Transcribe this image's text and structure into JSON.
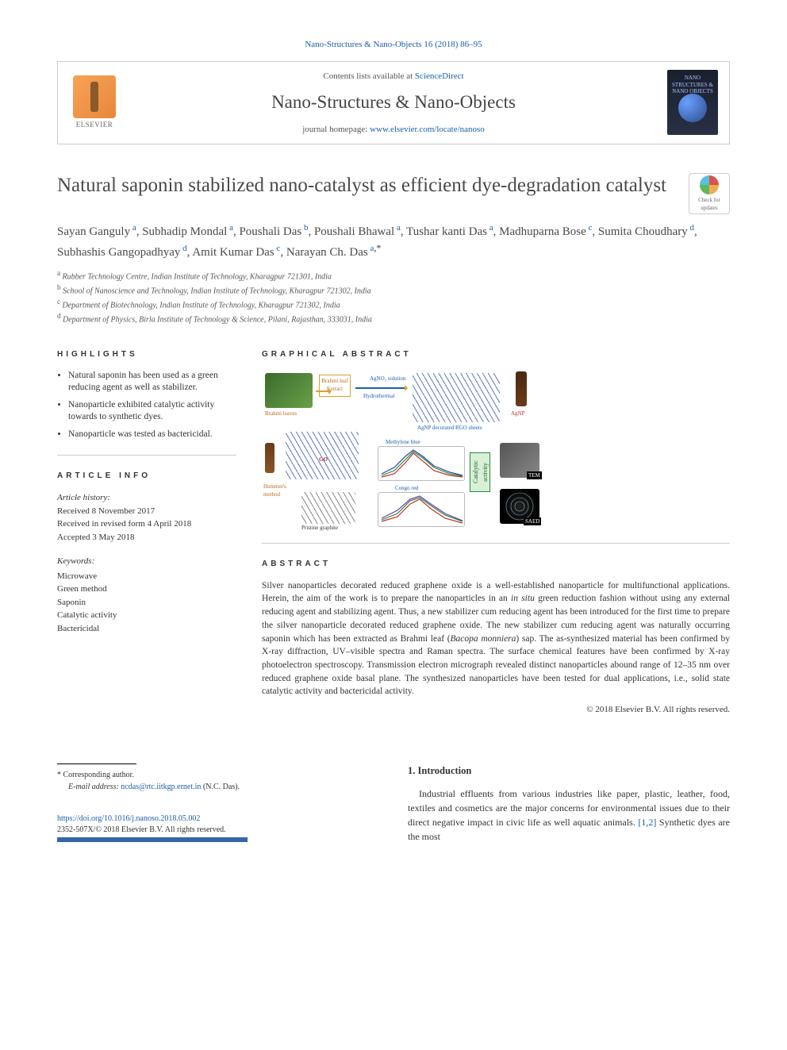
{
  "running_head": "Nano-Structures & Nano-Objects 16 (2018) 86–95",
  "masthead": {
    "contents_prefix": "Contents lists available at ",
    "contents_link": "ScienceDirect",
    "journal": "Nano-Structures & Nano-Objects",
    "homepage_prefix": "journal homepage: ",
    "homepage_link": "www.elsevier.com/locate/nanoso",
    "publisher_label": "ELSEVIER",
    "cover_text": "NANO STRUCTURES & NANO OBJECTS"
  },
  "title": "Natural saponin stabilized nano-catalyst as efficient dye-degradation catalyst",
  "check_updates": "Check for updates",
  "authors": [
    {
      "name": "Sayan Ganguly",
      "aff": "a"
    },
    {
      "name": "Subhadip Mondal",
      "aff": "a"
    },
    {
      "name": "Poushali Das",
      "aff": "b"
    },
    {
      "name": "Poushali Bhawal",
      "aff": "a"
    },
    {
      "name": "Tushar kanti Das",
      "aff": "a"
    },
    {
      "name": "Madhuparna Bose",
      "aff": "c"
    },
    {
      "name": "Sumita Choudhary",
      "aff": "d"
    },
    {
      "name": "Subhashis Gangopadhyay",
      "aff": "d"
    },
    {
      "name": "Amit Kumar Das",
      "aff": "c"
    },
    {
      "name": "Narayan Ch. Das",
      "aff": "a",
      "corresp": true
    }
  ],
  "affiliations": {
    "a": "Rubber Technology Centre, Indian Institute of Technology, Kharagpur 721301, India",
    "b": "School of Nanoscience and Technology, Indian Institute of Technology, Kharagpur 721302, India",
    "c": "Department of Biotechnology, Indian Institute of Technology, Kharagpur 721302, India",
    "d": "Department of Physics, Birla Institute of Technology & Science, Pilani, Rajasthan, 333031, India"
  },
  "highlights_label": "HIGHLIGHTS",
  "highlights": [
    "Natural saponin has been used as a green reducing agent as well as stabilizer.",
    "Nanoparticle exhibited catalytic activity towards to synthetic dyes.",
    "Nanoparticle was tested as bactericidal."
  ],
  "graphical_label": "GRAPHICAL ABSTRACT",
  "graphical": {
    "labels": {
      "leaves": "Brahmi leaves",
      "extract": "Brahmi leaf Extract",
      "agno3": "AgNO₃ solution",
      "hydro": "Hydrothermal",
      "agnp_rgo": "AgNP decorated RGO sheets",
      "agnp": "AgNP",
      "go": "GO",
      "hummers": "Hummer's method",
      "graphite": "Pristine graphite",
      "mb": "Methylene blue",
      "cr": "Congo red",
      "cat": "Catalytic activity",
      "tem": "TEM",
      "saed": "SAED"
    }
  },
  "article_info_label": "ARTICLE INFO",
  "history_label": "Article history:",
  "history": [
    "Received 8 November 2017",
    "Received in revised form 4 April 2018",
    "Accepted 3 May 2018"
  ],
  "keywords_label": "Keywords:",
  "keywords": [
    "Microwave",
    "Green method",
    "Saponin",
    "Catalytic activity",
    "Bactericidal"
  ],
  "abstract_label": "ABSTRACT",
  "abstract": "Silver nanoparticles decorated reduced graphene oxide is a well-established nanoparticle for multifunctional applications. Herein, the aim of the work is to prepare the nanoparticles in an in situ green reduction fashion without using any external reducing agent and stabilizing agent. Thus, a new stabilizer cum reducing agent has been introduced for the first time to prepare the silver nanoparticle decorated reduced graphene oxide. The new stabilizer cum reducing agent was naturally occurring saponin which has been extracted as Brahmi leaf (Bacopa monniera) sap. The as-synthesized material has been confirmed by X-ray diffraction, UV–visible spectra and Raman spectra. The surface chemical features have been confirmed by X-ray photoelectron spectroscopy. Transmission electron micrograph revealed distinct nanoparticles abound range of 12–35 nm over reduced graphene oxide basal plane. The synthesized nanoparticles have been tested for dual applications, i.e., solid state catalytic activity and bactericidal activity.",
  "copyright": "© 2018 Elsevier B.V. All rights reserved.",
  "intro_head": "1. Introduction",
  "intro_text_pre": "Industrial effluents from various industries like paper, plastic, leather, food, textiles and cosmetics are the major concerns for environmental issues due to their direct negative impact in civic life as well aquatic animals. ",
  "intro_cite": "[1,2]",
  "intro_text_post": " Synthetic dyes are the most",
  "footnote": {
    "corresp": "Corresponding author.",
    "email_label": "E-mail address:",
    "email": "ncdas@rtc.iitkgp.ernet.in",
    "email_whom": "(N.C. Das)."
  },
  "doi": {
    "link": "https://doi.org/10.1016/j.nanoso.2018.05.002",
    "issn_line": "2352-507X/© 2018 Elsevier B.V. All rights reserved."
  },
  "colors": {
    "link": "#1a5faa",
    "text": "#333333",
    "border": "#cccccc",
    "accent_bar": "#3366aa"
  }
}
